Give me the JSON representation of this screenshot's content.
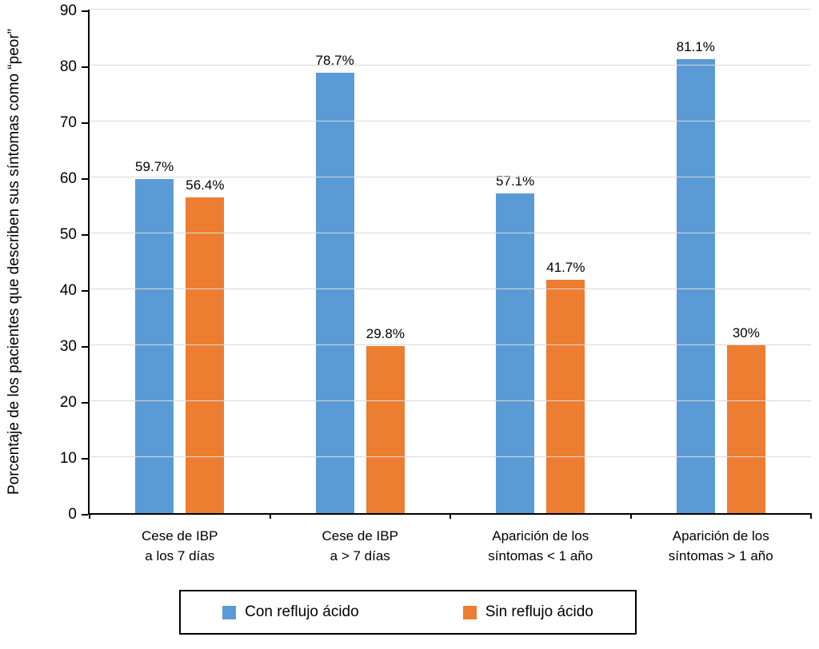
{
  "chart_data": {
    "type": "bar",
    "title": "",
    "ylabel": "Porcentaje de los pacientes que describen sus síntomas como “peor”",
    "xlabel": "",
    "ylim": [
      0,
      90
    ],
    "ytick_step": 10,
    "grid": "horizontal",
    "legend_position": "bottom",
    "categories": [
      [
        "Cese de IBP",
        "a los 7 días"
      ],
      [
        "Cese de IBP",
        "a > 7 días"
      ],
      [
        "Aparición de los",
        "síntomas < 1 año"
      ],
      [
        "Aparición de los",
        "síntomas > 1 año"
      ]
    ],
    "series": [
      {
        "name": "Con reflujo ácido",
        "color": "#5b9bd5",
        "values": [
          59.7,
          78.7,
          57.1,
          81.1
        ],
        "labels": [
          "59.7%",
          "78.7%",
          "57.1%",
          "81.1%"
        ]
      },
      {
        "name": "Sin reflujo ácido",
        "color": "#ed7d31",
        "values": [
          56.4,
          29.8,
          41.7,
          30
        ],
        "labels": [
          "56.4%",
          "29.8%",
          "41.7%",
          "30%"
        ]
      }
    ],
    "colors": {
      "gridline": "#d9d9d9",
      "axis": "#000000"
    }
  }
}
